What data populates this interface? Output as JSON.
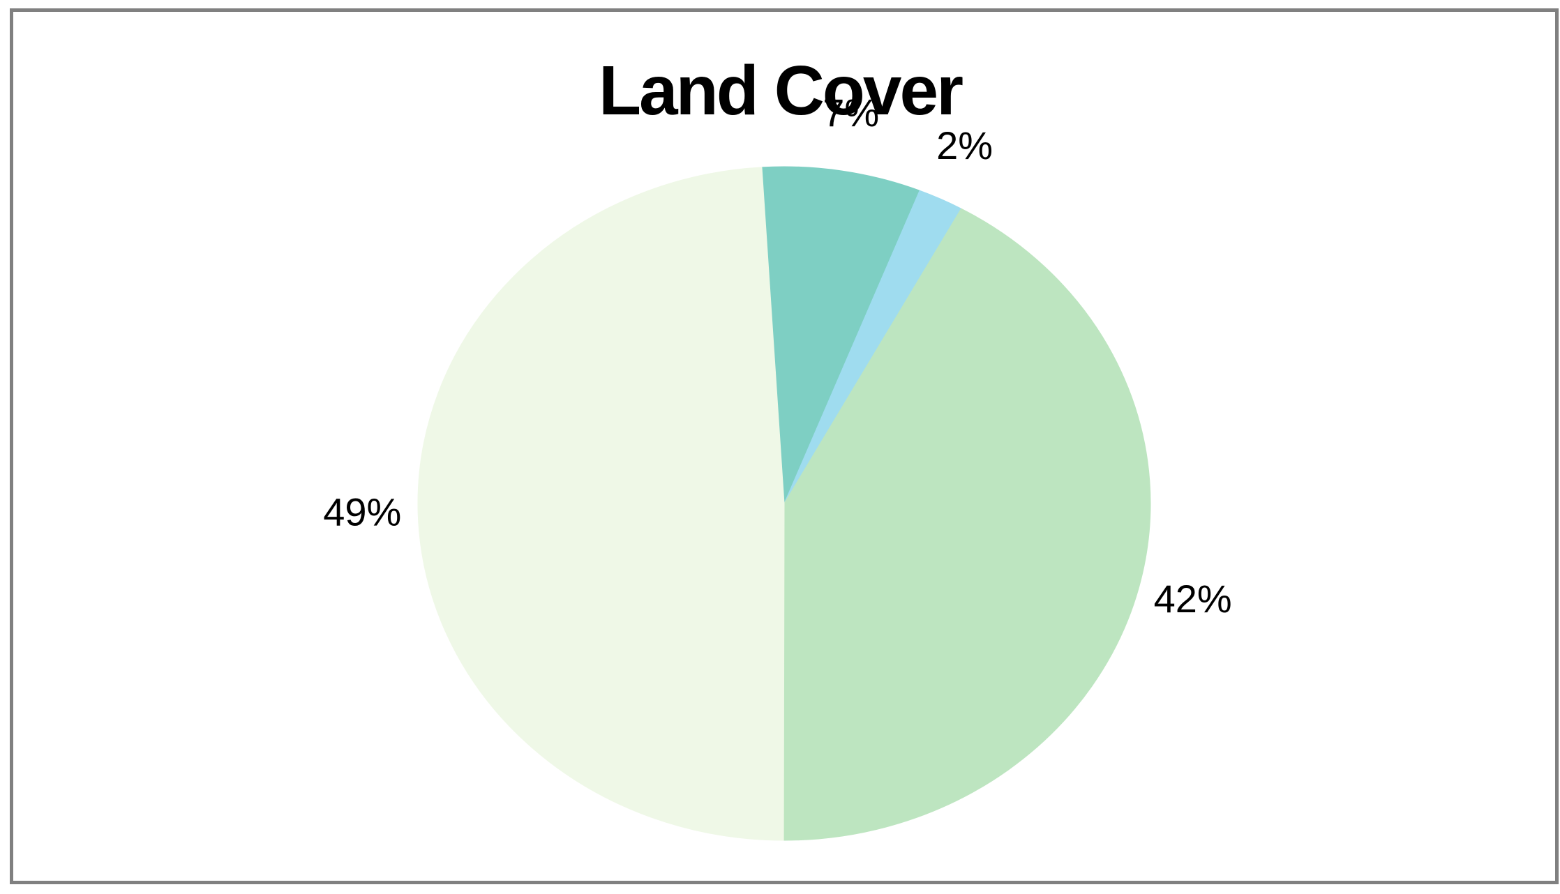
{
  "chart_data": {
    "type": "pie",
    "title": "Land Cover",
    "slices": [
      {
        "value": 7,
        "label": "7%",
        "color": "#7ecfc3"
      },
      {
        "value": 2,
        "label": "2%",
        "color": "#9fdcef"
      },
      {
        "value": 42,
        "label": "42%",
        "color": "#bde5c0"
      },
      {
        "value": 49,
        "label": "49%",
        "color": "#eff8e7"
      }
    ],
    "legend": "none"
  }
}
